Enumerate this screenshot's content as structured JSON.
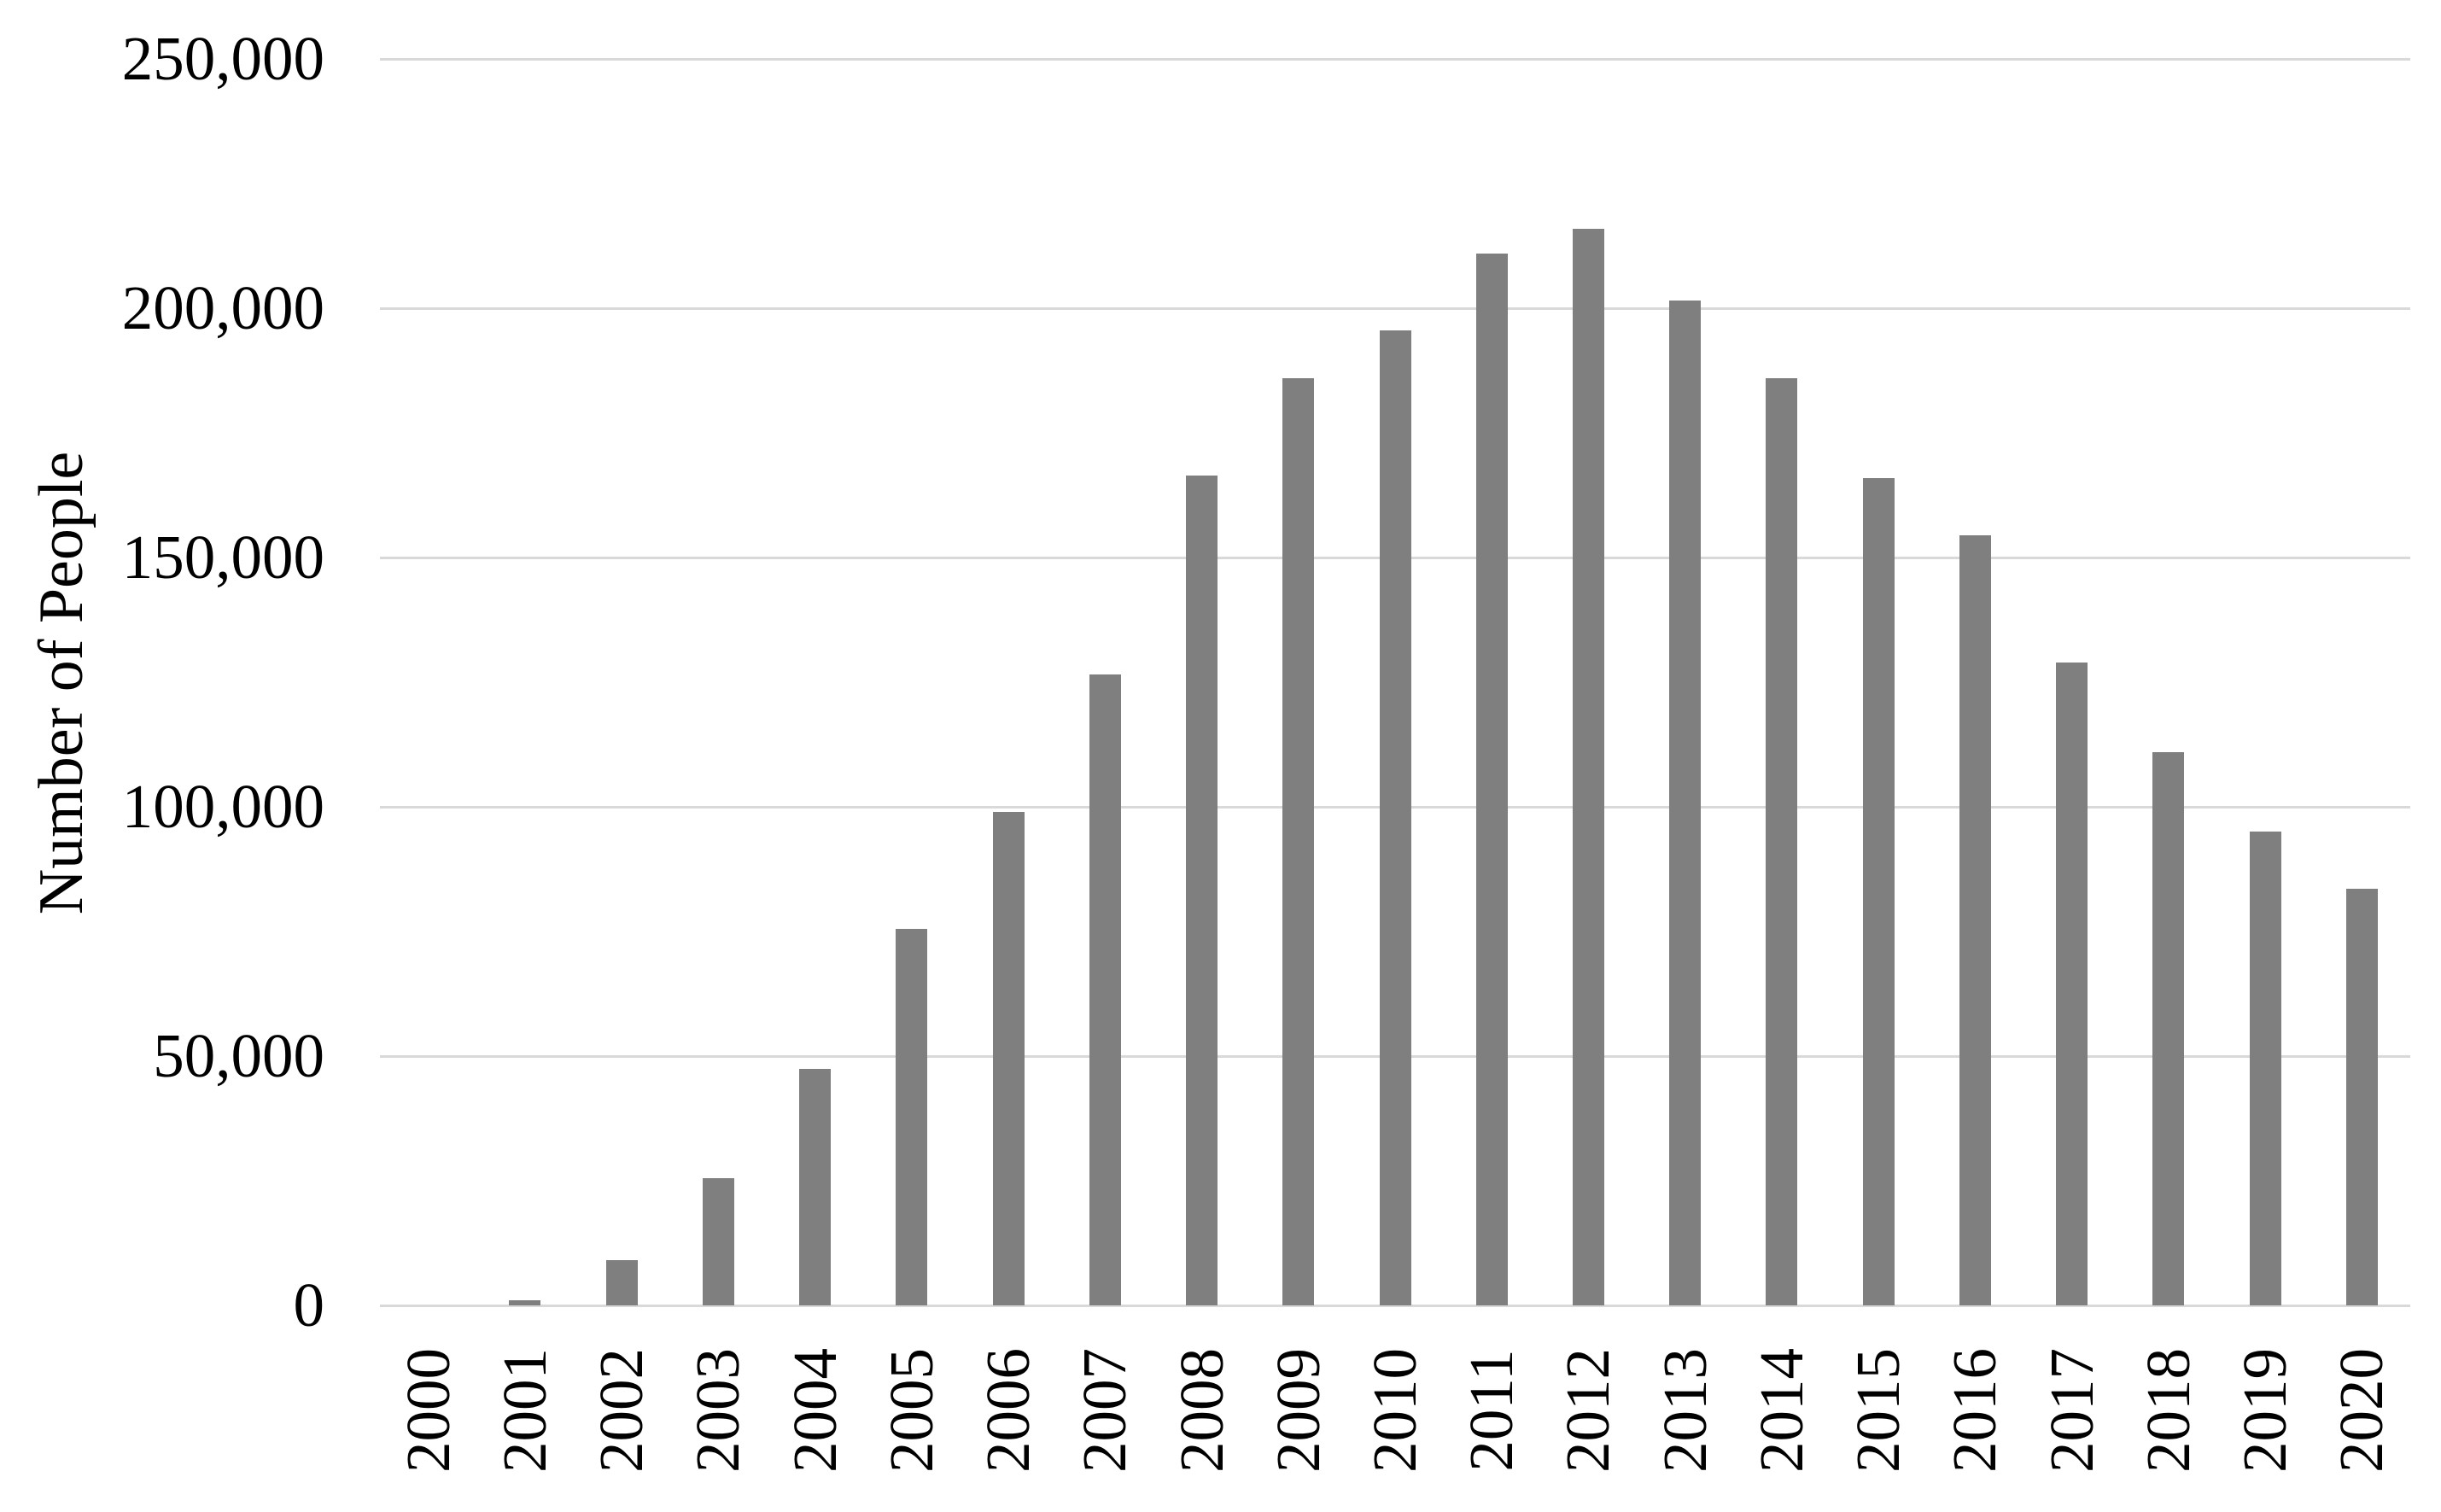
{
  "chart_data": {
    "type": "bar",
    "title": "",
    "ylabel": "Number of People",
    "xlabel": "",
    "categories": [
      "2000",
      "2001",
      "2002",
      "2003",
      "2004",
      "2005",
      "2006",
      "2007",
      "2008",
      "2009",
      "2010",
      "2011",
      "2012",
      "2013",
      "2014",
      "2015",
      "2016",
      "2017",
      "2018",
      "2019",
      "2020"
    ],
    "values": [
      0,
      1000,
      9000,
      25500,
      47500,
      75500,
      99000,
      126500,
      166500,
      186000,
      195500,
      211000,
      216000,
      201500,
      186000,
      166000,
      154500,
      129000,
      111000,
      95000,
      83500
    ],
    "ylim": [
      0,
      250000
    ],
    "ytick_step": 50000,
    "ytick_labels": [
      "0",
      "50,000",
      "100,000",
      "150,000",
      "200,000",
      "250,000"
    ],
    "grid": true,
    "legend": false,
    "bar_color": "#7f7f7f",
    "gridline_color": "#d9d9d9",
    "axis_line_color": "#d9d9d9",
    "text_color": "#000000",
    "background_color": "#ffffff"
  }
}
